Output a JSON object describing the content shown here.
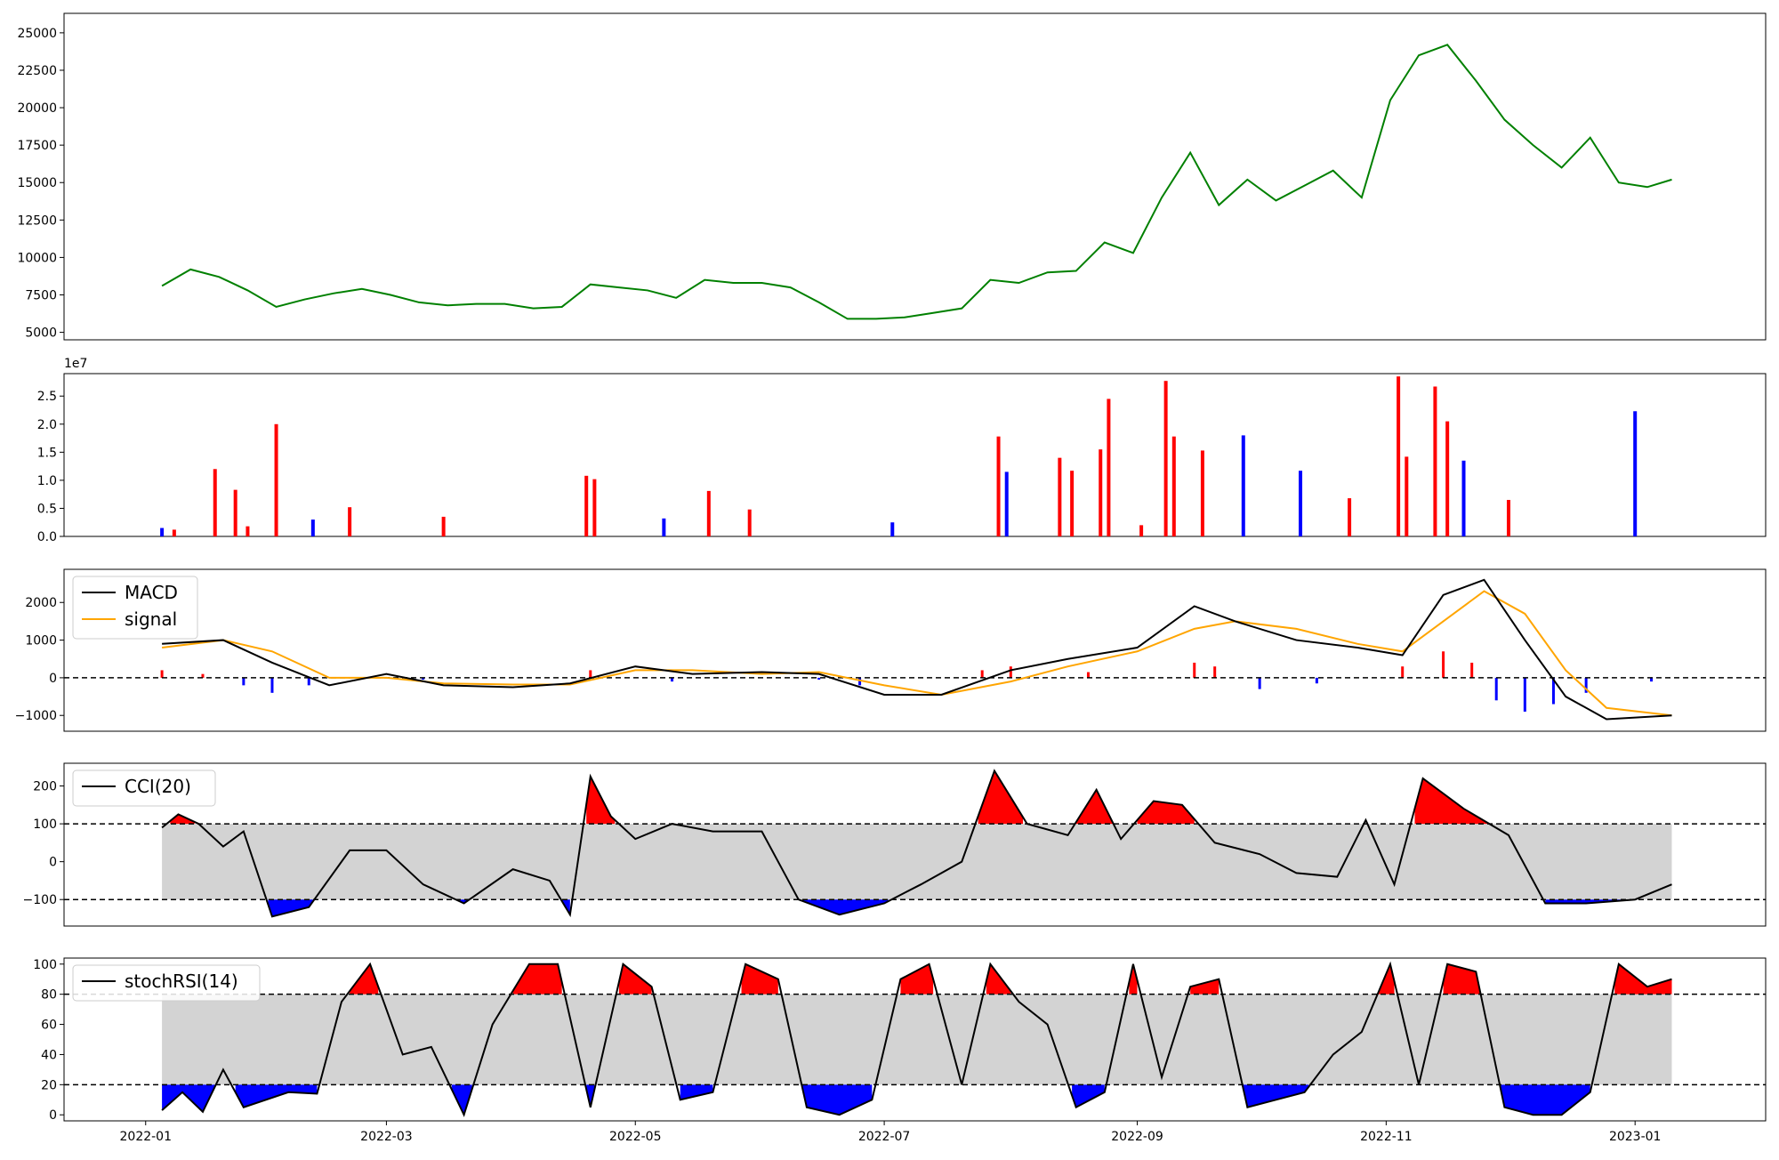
{
  "chart_data": [
    {
      "id": "price",
      "type": "line",
      "ylim": [
        4500,
        26300
      ],
      "yticks": [
        5000,
        7500,
        10000,
        12500,
        15000,
        17500,
        20000,
        22500,
        25000
      ],
      "ytick_labels": [
        "5000",
        "7500",
        "10000",
        "12500",
        "15000",
        "17500",
        "20000",
        "22500",
        "25000"
      ],
      "colors": {
        "line": "#008000"
      },
      "series": [
        {
          "x": [
            "2022-01-05",
            "2022-01-12",
            "2022-01-19",
            "2022-01-26",
            "2022-02-02",
            "2022-02-09",
            "2022-02-16",
            "2022-02-23",
            "2022-03-02",
            "2022-03-09",
            "2022-03-16",
            "2022-03-23",
            "2022-03-30",
            "2022-04-06",
            "2022-04-13",
            "2022-04-20",
            "2022-04-27",
            "2022-05-04",
            "2022-05-11",
            "2022-05-18",
            "2022-05-25",
            "2022-06-01",
            "2022-06-08",
            "2022-06-15",
            "2022-06-22",
            "2022-06-29",
            "2022-07-06",
            "2022-07-13",
            "2022-07-20",
            "2022-07-27",
            "2022-08-03",
            "2022-08-10",
            "2022-08-17",
            "2022-08-24",
            "2022-08-31",
            "2022-09-07",
            "2022-09-14",
            "2022-09-21",
            "2022-09-28",
            "2022-10-05",
            "2022-10-12",
            "2022-10-19",
            "2022-10-26",
            "2022-11-02",
            "2022-11-09",
            "2022-11-16",
            "2022-11-23",
            "2022-11-30",
            "2022-12-07",
            "2022-12-14",
            "2022-12-21",
            "2022-12-28",
            "2023-01-04",
            "2023-01-10"
          ],
          "values": [
            8100,
            9200,
            8700,
            7800,
            6700,
            7200,
            7600,
            7900,
            7500,
            7000,
            6800,
            6900,
            6900,
            6600,
            6700,
            8200,
            8000,
            7800,
            7300,
            8500,
            8300,
            8300,
            8000,
            7000,
            5900,
            5900,
            6000,
            6300,
            6600,
            8500,
            8300,
            9000,
            9100,
            11000,
            10300,
            14000,
            17000,
            13500,
            15200,
            13800,
            14800,
            15800,
            14000,
            20500,
            23500,
            24200,
            21800,
            19200,
            17500,
            16000,
            18000,
            15000,
            14700,
            15200
          ]
        }
      ]
    },
    {
      "id": "volume",
      "type": "bar",
      "ylim": [
        0,
        29000000
      ],
      "yticks": [
        0,
        5000000,
        10000000,
        15000000,
        20000000,
        25000000
      ],
      "ytick_labels": [
        "0.0",
        "0.5",
        "1.0",
        "1.5",
        "2.0",
        "2.5"
      ],
      "offset_label": "1e7",
      "colors": {
        "up": "#ff0000",
        "down": "#0000ff"
      },
      "series": [
        {
          "name": "volume",
          "x": [
            "2022-01-05",
            "2022-01-08",
            "2022-01-18",
            "2022-01-23",
            "2022-01-26",
            "2022-02-02",
            "2022-02-11",
            "2022-02-20",
            "2022-03-15",
            "2022-04-19",
            "2022-04-21",
            "2022-05-08",
            "2022-05-19",
            "2022-05-29",
            "2022-07-03",
            "2022-07-29",
            "2022-07-31",
            "2022-08-13",
            "2022-08-16",
            "2022-08-23",
            "2022-08-25",
            "2022-09-02",
            "2022-09-08",
            "2022-09-10",
            "2022-09-17",
            "2022-09-27",
            "2022-10-11",
            "2022-10-23",
            "2022-11-04",
            "2022-11-06",
            "2022-11-13",
            "2022-11-16",
            "2022-11-20",
            "2022-12-01",
            "2023-01-01"
          ],
          "values": [
            1500000,
            1200000,
            12000000,
            8300000,
            1800000,
            20000000,
            3000000,
            5200000,
            3500000,
            10800000,
            10200000,
            3200000,
            8100000,
            4800000,
            2500000,
            17800000,
            11500000,
            14000000,
            11700000,
            15500000,
            24500000,
            2000000,
            27700000,
            17800000,
            15300000,
            18000000,
            11700000,
            6800000,
            28500000,
            14200000,
            26700000,
            20500000,
            13500000,
            6500000,
            22300000
          ],
          "direction": [
            "down",
            "up",
            "up",
            "up",
            "up",
            "up",
            "down",
            "up",
            "up",
            "up",
            "up",
            "down",
            "up",
            "up",
            "down",
            "up",
            "down",
            "up",
            "up",
            "up",
            "up",
            "up",
            "up",
            "up",
            "up",
            "down",
            "down",
            "up",
            "up",
            "up",
            "up",
            "up",
            "down",
            "up",
            "down"
          ]
        }
      ]
    },
    {
      "id": "macd",
      "type": "line",
      "ylim": [
        -1420,
        2880
      ],
      "yticks": [
        -1000,
        0,
        1000,
        2000
      ],
      "ytick_labels": [
        "−1000",
        "0",
        "1000",
        "2000"
      ],
      "legend": {
        "position": "upper-left"
      },
      "reference_line": 0,
      "colors": {
        "macd": "#000000",
        "signal": "#ffa500",
        "hist_up": "#ff0000",
        "hist_down": "#0000ff"
      },
      "x": [
        "2022-01-05",
        "2022-01-20",
        "2022-02-01",
        "2022-02-15",
        "2022-03-01",
        "2022-03-15",
        "2022-04-01",
        "2022-04-15",
        "2022-05-01",
        "2022-05-15",
        "2022-06-01",
        "2022-06-15",
        "2022-07-01",
        "2022-07-15",
        "2022-08-01",
        "2022-08-15",
        "2022-09-01",
        "2022-09-15",
        "2022-09-25",
        "2022-10-10",
        "2022-10-25",
        "2022-11-05",
        "2022-11-15",
        "2022-11-25",
        "2022-12-05",
        "2022-12-15",
        "2022-12-25",
        "2023-01-10"
      ],
      "series": [
        {
          "name": "MACD",
          "values": [
            900,
            1000,
            400,
            -200,
            100,
            -200,
            -250,
            -150,
            300,
            100,
            150,
            100,
            -450,
            -450,
            200,
            500,
            800,
            1900,
            1500,
            1000,
            800,
            600,
            2200,
            2600,
            1000,
            -500,
            -1100,
            -1000
          ]
        },
        {
          "name": "signal",
          "values": [
            800,
            1000,
            700,
            0,
            0,
            -150,
            -180,
            -180,
            200,
            200,
            100,
            150,
            -200,
            -450,
            -100,
            300,
            700,
            1300,
            1500,
            1300,
            900,
            700,
            1500,
            2300,
            1700,
            200,
            -800,
            -1000
          ]
        }
      ],
      "histogram": {
        "x": [
          "2022-01-05",
          "2022-01-15",
          "2022-01-25",
          "2022-02-01",
          "2022-02-10",
          "2022-03-10",
          "2022-04-20",
          "2022-05-10",
          "2022-06-15",
          "2022-06-25",
          "2022-07-25",
          "2022-08-01",
          "2022-08-20",
          "2022-09-15",
          "2022-09-20",
          "2022-10-01",
          "2022-10-15",
          "2022-11-05",
          "2022-11-15",
          "2022-11-22",
          "2022-11-28",
          "2022-12-05",
          "2022-12-12",
          "2022-12-20",
          "2023-01-05"
        ],
        "values": [
          200,
          100,
          -200,
          -400,
          -200,
          -50,
          200,
          -100,
          -50,
          -200,
          200,
          300,
          150,
          400,
          300,
          -300,
          -150,
          300,
          700,
          400,
          -600,
          -900,
          -700,
          -400,
          -100
        ]
      }
    },
    {
      "id": "cci",
      "type": "area",
      "ylim": [
        -170,
        260
      ],
      "yticks": [
        -100,
        0,
        100,
        200
      ],
      "ytick_labels": [
        "−100",
        "0",
        "100",
        "200"
      ],
      "legend": {
        "position": "upper-left"
      },
      "thresholds": [
        -100,
        100
      ],
      "colors": {
        "line": "#000000",
        "above": "#ff0000",
        "below": "#0000ff",
        "band": "#d3d3d3"
      },
      "series": [
        {
          "name": "CCI(20)",
          "x": [
            "2022-01-05",
            "2022-01-09",
            "2022-01-14",
            "2022-01-20",
            "2022-01-25",
            "2022-02-01",
            "2022-02-10",
            "2022-02-20",
            "2022-03-01",
            "2022-03-10",
            "2022-03-20",
            "2022-04-01",
            "2022-04-10",
            "2022-04-15",
            "2022-04-20",
            "2022-04-25",
            "2022-05-01",
            "2022-05-10",
            "2022-05-20",
            "2022-06-01",
            "2022-06-10",
            "2022-06-20",
            "2022-07-01",
            "2022-07-10",
            "2022-07-20",
            "2022-07-28",
            "2022-08-05",
            "2022-08-15",
            "2022-08-22",
            "2022-08-28",
            "2022-09-05",
            "2022-09-12",
            "2022-09-20",
            "2022-10-01",
            "2022-10-10",
            "2022-10-20",
            "2022-10-27",
            "2022-11-03",
            "2022-11-10",
            "2022-11-20",
            "2022-12-01",
            "2022-12-10",
            "2022-12-20",
            "2023-01-01",
            "2023-01-10"
          ],
          "values": [
            90,
            125,
            100,
            40,
            80,
            -145,
            -120,
            30,
            30,
            -60,
            -110,
            -20,
            -50,
            -140,
            225,
            120,
            60,
            100,
            80,
            80,
            -100,
            -140,
            -110,
            -60,
            0,
            240,
            100,
            70,
            190,
            60,
            160,
            150,
            50,
            20,
            -30,
            -40,
            110,
            -60,
            220,
            140,
            70,
            -110,
            -110,
            -100,
            -60
          ]
        }
      ]
    },
    {
      "id": "stochrsi",
      "type": "area",
      "ylim": [
        -4,
        104
      ],
      "yticks": [
        0,
        20,
        40,
        60,
        80,
        100
      ],
      "ytick_labels": [
        "0",
        "20",
        "40",
        "60",
        "80",
        "100"
      ],
      "legend": {
        "position": "upper-left"
      },
      "thresholds": [
        20,
        80
      ],
      "colors": {
        "line": "#000000",
        "above": "#ff0000",
        "below": "#0000ff",
        "band": "#d3d3d3"
      },
      "series": [
        {
          "name": "stochRSI(14)",
          "x": [
            "2022-01-05",
            "2022-01-10",
            "2022-01-15",
            "2022-01-20",
            "2022-01-25",
            "2022-02-05",
            "2022-02-12",
            "2022-02-18",
            "2022-02-25",
            "2022-03-05",
            "2022-03-12",
            "2022-03-20",
            "2022-03-27",
            "2022-04-05",
            "2022-04-12",
            "2022-04-20",
            "2022-04-28",
            "2022-05-05",
            "2022-05-12",
            "2022-05-20",
            "2022-05-28",
            "2022-06-05",
            "2022-06-12",
            "2022-06-20",
            "2022-06-28",
            "2022-07-05",
            "2022-07-12",
            "2022-07-20",
            "2022-07-27",
            "2022-08-03",
            "2022-08-10",
            "2022-08-17",
            "2022-08-24",
            "2022-08-31",
            "2022-09-07",
            "2022-09-14",
            "2022-09-21",
            "2022-09-28",
            "2022-10-05",
            "2022-10-12",
            "2022-10-19",
            "2022-10-26",
            "2022-11-02",
            "2022-11-09",
            "2022-11-16",
            "2022-11-23",
            "2022-11-30",
            "2022-12-07",
            "2022-12-14",
            "2022-12-21",
            "2022-12-28",
            "2023-01-04",
            "2023-01-10"
          ],
          "values": [
            3,
            15,
            2,
            30,
            5,
            15,
            14,
            75,
            100,
            40,
            45,
            0,
            60,
            100,
            100,
            5,
            100,
            85,
            10,
            15,
            100,
            90,
            5,
            0,
            10,
            90,
            100,
            20,
            100,
            75,
            60,
            5,
            15,
            100,
            25,
            85,
            90,
            5,
            10,
            15,
            40,
            55,
            100,
            20,
            100,
            95,
            5,
            0,
            0,
            15,
            100,
            85,
            90
          ]
        }
      ]
    }
  ],
  "x_axis": {
    "ticks": [
      "2022-01",
      "2022-03",
      "2022-05",
      "2022-07",
      "2022-09",
      "2022-11",
      "2023-01"
    ],
    "tick_dates": [
      "2022-01-01",
      "2022-03-01",
      "2022-05-01",
      "2022-07-01",
      "2022-09-01",
      "2022-11-01",
      "2023-01-01"
    ],
    "range": [
      "2021-12-12",
      "2023-02-02"
    ]
  }
}
